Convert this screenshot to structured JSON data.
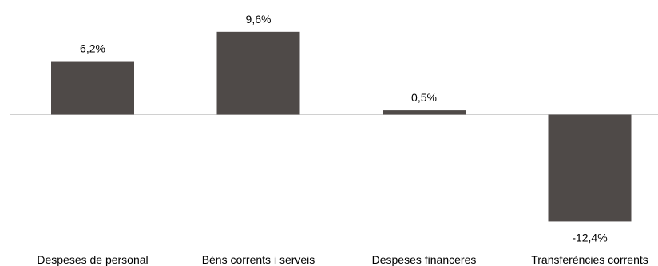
{
  "chart_data": {
    "type": "bar",
    "categories": [
      "Despeses de personal",
      "Béns corrents i serveis",
      "Despeses financeres",
      "Transferències corrents"
    ],
    "values": [
      6.2,
      9.6,
      0.5,
      -12.4
    ],
    "value_labels": [
      "6,2%",
      "9,6%",
      "0,5%",
      "-12,4%"
    ],
    "unit": "%",
    "ylim": [
      -12.4,
      9.6
    ],
    "grid": false,
    "legend": "none",
    "colors": {
      "bar": "#4f4a48",
      "baseline": "#d0d0d0",
      "text": "#000000"
    }
  }
}
